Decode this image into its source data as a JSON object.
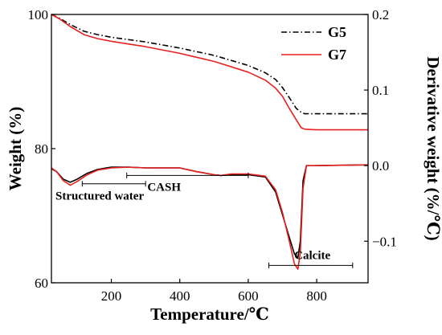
{
  "chart_data": {
    "type": "line",
    "xlabel": "Temperature/℃",
    "ylabel_left": "Weight (%)",
    "ylabel_right": "Derivative weight (%/℃)",
    "xlim": [
      25,
      950
    ],
    "ylim_left": [
      60,
      100
    ],
    "ylim_right": [
      -0.155,
      0.2
    ],
    "x_ticks": [
      200,
      400,
      600,
      800
    ],
    "x_tick_labels": [
      "200",
      "400",
      "600",
      "800"
    ],
    "y_left_ticks": [
      60,
      80,
      100
    ],
    "y_left_tick_labels": [
      "60",
      "80",
      "100"
    ],
    "y_right_ticks": [
      -0.1,
      0.0,
      0.1,
      0.2
    ],
    "y_right_tick_labels": [
      "−0.1",
      "0.0",
      "0.1",
      "0.2"
    ],
    "legend_position": "top-right",
    "series": [
      {
        "name": "G5",
        "axis": "left",
        "color": "#000000",
        "dash": "dash-dot",
        "x": [
          25,
          50,
          80,
          120,
          160,
          200,
          300,
          400,
          500,
          600,
          650,
          680,
          700,
          720,
          740,
          755,
          765,
          800,
          950
        ],
        "y": [
          100,
          99.4,
          98.5,
          97.5,
          97.0,
          96.6,
          95.9,
          95.0,
          93.9,
          92.4,
          91.3,
          90.3,
          89.1,
          87.6,
          86.0,
          85.4,
          85.2,
          85.2,
          85.2
        ]
      },
      {
        "name": "G7",
        "axis": "left",
        "color": "#e8201f",
        "dash": "solid",
        "x": [
          25,
          50,
          80,
          120,
          160,
          200,
          300,
          400,
          500,
          600,
          650,
          680,
          700,
          720,
          740,
          755,
          765,
          800,
          950
        ],
        "y": [
          100,
          99.3,
          98.2,
          97.0,
          96.4,
          96.0,
          95.2,
          94.2,
          93.0,
          91.4,
          90.2,
          89.0,
          87.8,
          86.0,
          84.3,
          83.1,
          82.9,
          82.8,
          82.8
        ]
      },
      {
        "name": "G5",
        "axis": "right",
        "color": "#000000",
        "dash": "solid",
        "x": [
          25,
          40,
          60,
          80,
          100,
          130,
          160,
          200,
          250,
          300,
          400,
          450,
          500,
          520,
          550,
          600,
          650,
          680,
          700,
          720,
          735,
          745,
          752,
          760,
          770,
          790,
          950
        ],
        "y": [
          -0.004,
          -0.008,
          -0.018,
          -0.022,
          -0.018,
          -0.01,
          -0.005,
          -0.002,
          -0.002,
          -0.003,
          -0.003,
          -0.008,
          -0.012,
          -0.013,
          -0.012,
          -0.012,
          -0.015,
          -0.035,
          -0.065,
          -0.095,
          -0.117,
          -0.122,
          -0.1,
          -0.02,
          0.0,
          0.0,
          0.001
        ]
      },
      {
        "name": "G7",
        "axis": "right",
        "color": "#e8201f",
        "dash": "solid",
        "x": [
          25,
          40,
          60,
          80,
          100,
          130,
          160,
          200,
          250,
          300,
          400,
          450,
          500,
          520,
          550,
          600,
          650,
          680,
          700,
          720,
          735,
          745,
          752,
          760,
          770,
          790,
          950
        ],
        "y": [
          -0.003,
          -0.008,
          -0.02,
          -0.026,
          -0.021,
          -0.012,
          -0.006,
          -0.003,
          -0.002,
          -0.003,
          -0.003,
          -0.008,
          -0.012,
          -0.013,
          -0.011,
          -0.011,
          -0.014,
          -0.032,
          -0.062,
          -0.1,
          -0.13,
          -0.137,
          -0.115,
          -0.03,
          0.0,
          0.0,
          0.001
        ]
      }
    ],
    "annotations": [
      {
        "label": "Structured water",
        "range": [
          115,
          300
        ],
        "y": -0.024
      },
      {
        "label": "CASH",
        "range": [
          245,
          600
        ],
        "y": -0.013
      },
      {
        "label": "Calcite",
        "range": [
          660,
          905
        ],
        "y": -0.132
      }
    ]
  }
}
